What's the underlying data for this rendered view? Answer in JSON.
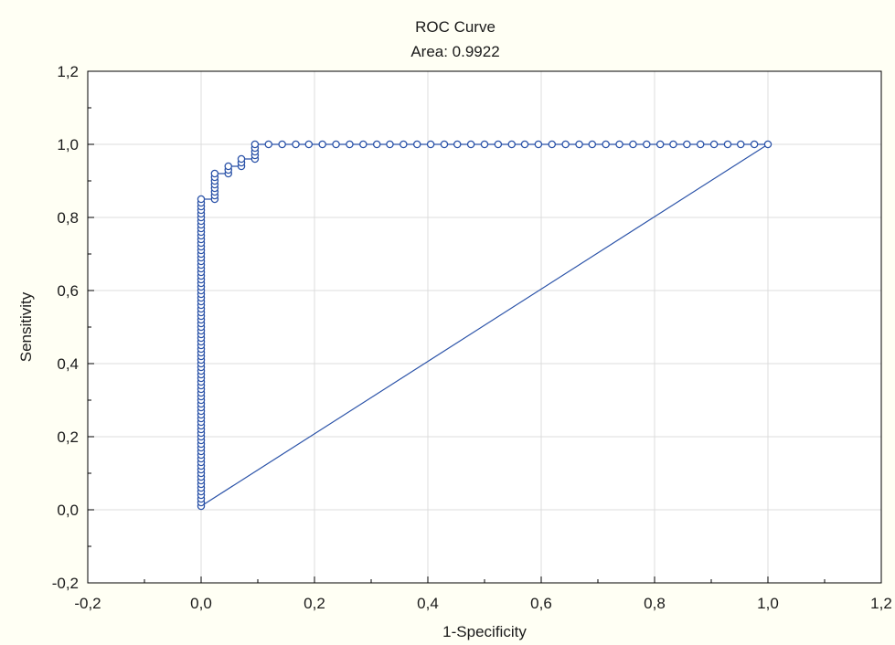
{
  "chart_data": {
    "type": "scatter",
    "title": "ROC Curve",
    "subtitle": "Area: 0.9922",
    "xlabel": "1-Specificity",
    "ylabel": "Sensitivity",
    "xlim": [
      -0.2,
      1.2
    ],
    "ylim": [
      -0.2,
      1.2
    ],
    "x_ticks": [
      "-0,2",
      "0,0",
      "0,2",
      "0,4",
      "0,6",
      "0,8",
      "1,0",
      "1,2"
    ],
    "y_ticks": [
      "-0,2",
      "0,0",
      "0,2",
      "0,4",
      "0,6",
      "0,8",
      "1,0",
      "1,2"
    ],
    "grid": true,
    "line_color": "#2a52a8",
    "marker": "open-circle",
    "roc_curve": {
      "x": [
        0.0,
        0.0,
        0.0,
        0.0,
        0.0,
        0.0,
        0.0,
        0.0,
        0.0,
        0.0,
        0.0,
        0.0,
        0.0,
        0.0,
        0.0,
        0.0,
        0.0,
        0.0,
        0.0,
        0.0,
        0.0,
        0.0,
        0.0,
        0.0,
        0.0,
        0.0,
        0.0,
        0.0,
        0.0,
        0.0,
        0.0,
        0.0,
        0.0,
        0.0,
        0.0,
        0.0,
        0.0,
        0.0,
        0.0,
        0.0,
        0.0,
        0.0,
        0.0,
        0.0,
        0.0,
        0.0,
        0.0,
        0.0,
        0.0,
        0.0,
        0.0,
        0.0,
        0.0,
        0.0,
        0.0,
        0.0,
        0.0,
        0.0,
        0.0,
        0.0,
        0.0,
        0.0,
        0.0,
        0.0,
        0.0,
        0.0,
        0.0,
        0.0,
        0.0,
        0.0,
        0.0,
        0.0,
        0.0,
        0.0,
        0.0,
        0.0,
        0.0,
        0.0,
        0.0,
        0.0,
        0.0,
        0.0,
        0.0,
        0.0,
        0.0,
        0.024,
        0.024,
        0.024,
        0.024,
        0.024,
        0.024,
        0.024,
        0.024,
        0.048,
        0.048,
        0.048,
        0.071,
        0.071,
        0.071,
        0.095,
        0.095,
        0.095,
        0.095,
        0.095,
        0.119,
        0.143,
        0.167,
        0.19,
        0.214,
        0.238,
        0.262,
        0.286,
        0.31,
        0.333,
        0.357,
        0.381,
        0.405,
        0.429,
        0.452,
        0.476,
        0.5,
        0.524,
        0.548,
        0.571,
        0.595,
        0.619,
        0.643,
        0.667,
        0.69,
        0.714,
        0.738,
        0.762,
        0.786,
        0.81,
        0.833,
        0.857,
        0.881,
        0.905,
        0.929,
        0.952,
        0.976,
        1.0
      ],
      "y": [
        0.01,
        0.02,
        0.03,
        0.04,
        0.05,
        0.06,
        0.07,
        0.08,
        0.09,
        0.1,
        0.11,
        0.12,
        0.13,
        0.14,
        0.15,
        0.16,
        0.17,
        0.18,
        0.19,
        0.2,
        0.21,
        0.22,
        0.23,
        0.24,
        0.25,
        0.26,
        0.27,
        0.28,
        0.29,
        0.3,
        0.31,
        0.32,
        0.33,
        0.34,
        0.35,
        0.36,
        0.37,
        0.38,
        0.39,
        0.4,
        0.41,
        0.42,
        0.43,
        0.44,
        0.45,
        0.46,
        0.47,
        0.48,
        0.49,
        0.5,
        0.51,
        0.52,
        0.53,
        0.54,
        0.55,
        0.56,
        0.57,
        0.58,
        0.59,
        0.6,
        0.61,
        0.62,
        0.63,
        0.64,
        0.65,
        0.66,
        0.67,
        0.68,
        0.69,
        0.7,
        0.71,
        0.72,
        0.73,
        0.74,
        0.75,
        0.76,
        0.77,
        0.78,
        0.79,
        0.8,
        0.81,
        0.82,
        0.83,
        0.84,
        0.85,
        0.85,
        0.86,
        0.87,
        0.88,
        0.89,
        0.9,
        0.91,
        0.92,
        0.92,
        0.93,
        0.94,
        0.94,
        0.95,
        0.96,
        0.96,
        0.97,
        0.98,
        0.99,
        1.0,
        1.0,
        1.0,
        1.0,
        1.0,
        1.0,
        1.0,
        1.0,
        1.0,
        1.0,
        1.0,
        1.0,
        1.0,
        1.0,
        1.0,
        1.0,
        1.0,
        1.0,
        1.0,
        1.0,
        1.0,
        1.0,
        1.0,
        1.0,
        1.0,
        1.0,
        1.0,
        1.0,
        1.0,
        1.0,
        1.0,
        1.0,
        1.0,
        1.0,
        1.0,
        1.0,
        1.0,
        1.0,
        1.0
      ]
    },
    "reference_line": {
      "x": [
        0.0,
        1.0
      ],
      "y": [
        0.01,
        1.0
      ]
    }
  }
}
